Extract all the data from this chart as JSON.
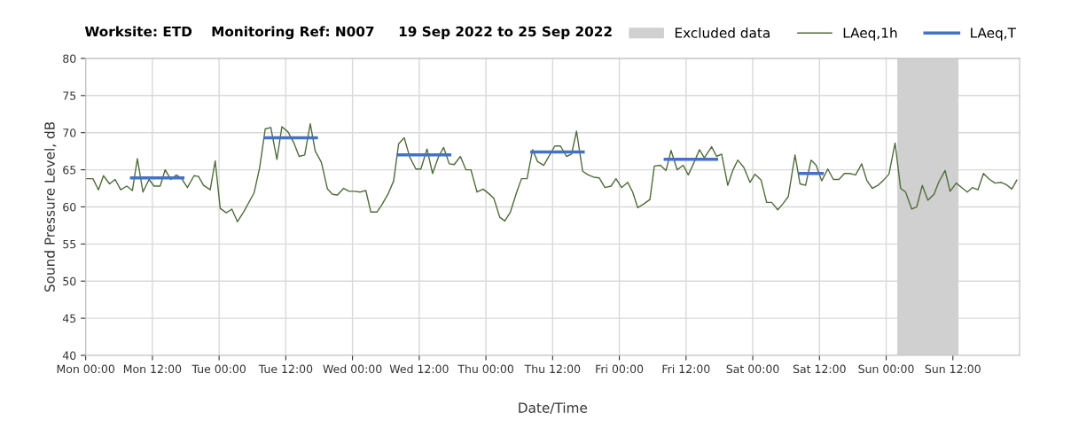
{
  "chart_data": {
    "type": "line",
    "title": "Worksite: ETD    Monitoring Ref: N007     19 Sep 2022 to 25 Sep 2022",
    "xlabel": "Date/Time",
    "ylabel": "Sound Pressure Level, dB",
    "xlim": [
      "2022-09-19T00:00",
      "2022-09-26T00:00"
    ],
    "ylim": [
      40,
      80
    ],
    "xticks": [
      {
        "value": "2022-09-19T00:00",
        "label": "Mon 00:00"
      },
      {
        "value": "2022-09-19T12:00",
        "label": "Mon 12:00"
      },
      {
        "value": "2022-09-20T00:00",
        "label": "Tue 00:00"
      },
      {
        "value": "2022-09-20T12:00",
        "label": "Tue 12:00"
      },
      {
        "value": "2022-09-21T00:00",
        "label": "Wed 00:00"
      },
      {
        "value": "2022-09-21T12:00",
        "label": "Wed 12:00"
      },
      {
        "value": "2022-09-22T00:00",
        "label": "Thu 00:00"
      },
      {
        "value": "2022-09-22T12:00",
        "label": "Thu 12:00"
      },
      {
        "value": "2022-09-23T00:00",
        "label": "Fri 00:00"
      },
      {
        "value": "2022-09-23T12:00",
        "label": "Fri 12:00"
      },
      {
        "value": "2022-09-24T00:00",
        "label": "Sat 00:00"
      },
      {
        "value": "2022-09-24T12:00",
        "label": "Sat 12:00"
      },
      {
        "value": "2022-09-25T00:00",
        "label": "Sun 00:00"
      },
      {
        "value": "2022-09-25T12:00",
        "label": "Sun 12:00"
      }
    ],
    "yticks": [
      40,
      45,
      50,
      55,
      60,
      65,
      70,
      75,
      80
    ],
    "grid": true,
    "legend": "top right",
    "bands": [
      {
        "axis": "x",
        "from": "2022-09-25T02:00",
        "to": "2022-09-25T13:00",
        "label": "Excluded data",
        "color": "#d0d0d0"
      }
    ],
    "series": [
      {
        "name": "LAeq,1h",
        "color": "#4f6b3a",
        "line_style": "solid",
        "x": [
          "2022-09-19T00:12",
          "2022-09-19T01:18",
          "2022-09-19T02:18",
          "2022-09-19T03:12",
          "2022-09-19T04:18",
          "2022-09-19T05:18",
          "2022-09-19T06:18",
          "2022-09-19T07:24",
          "2022-09-19T08:24",
          "2022-09-19T09:18",
          "2022-09-19T10:18",
          "2022-09-19T11:24",
          "2022-09-19T12:18",
          "2022-09-19T13:24",
          "2022-09-19T14:18",
          "2022-09-19T15:18",
          "2022-09-19T16:18",
          "2022-09-19T17:12",
          "2022-09-19T18:18",
          "2022-09-19T19:30",
          "2022-09-19T20:18",
          "2022-09-19T21:12",
          "2022-09-19T22:24",
          "2022-09-19T23:18",
          "2022-09-20T00:12",
          "2022-09-20T01:18",
          "2022-09-20T02:18",
          "2022-09-20T03:18",
          "2022-09-20T04:24",
          "2022-09-20T05:30",
          "2022-09-20T06:18",
          "2022-09-20T07:18",
          "2022-09-20T08:18",
          "2022-09-20T09:18",
          "2022-09-20T10:24",
          "2022-09-20T11:18",
          "2022-09-20T12:24",
          "2022-09-20T13:24",
          "2022-09-20T14:24",
          "2022-09-20T15:24",
          "2022-09-20T16:24",
          "2022-09-20T17:18",
          "2022-09-20T18:24",
          "2022-09-20T19:30",
          "2022-09-20T20:24",
          "2022-09-20T21:18",
          "2022-09-20T22:24",
          "2022-09-20T23:24",
          "2022-09-21T00:24",
          "2022-09-21T01:24",
          "2022-09-21T02:24",
          "2022-09-21T03:18",
          "2022-09-21T04:24",
          "2022-09-21T05:18",
          "2022-09-21T06:30",
          "2022-09-21T07:24",
          "2022-09-21T08:18",
          "2022-09-21T09:18",
          "2022-09-21T10:18",
          "2022-09-21T11:24",
          "2022-09-21T12:18",
          "2022-09-21T13:24",
          "2022-09-21T14:24",
          "2022-09-21T15:30",
          "2022-09-21T16:24",
          "2022-09-21T17:24",
          "2022-09-21T18:18",
          "2022-09-21T19:24",
          "2022-09-21T20:24",
          "2022-09-21T21:18",
          "2022-09-21T22:24",
          "2022-09-21T23:30",
          "2022-09-22T00:30",
          "2022-09-22T01:24",
          "2022-09-22T02:30",
          "2022-09-22T03:24",
          "2022-09-22T04:24",
          "2022-09-22T05:30",
          "2022-09-22T06:24",
          "2022-09-22T07:24",
          "2022-09-22T08:24",
          "2022-09-22T09:18",
          "2022-09-22T10:24",
          "2022-09-22T11:24",
          "2022-09-22T12:24",
          "2022-09-22T13:24",
          "2022-09-22T14:30",
          "2022-09-22T15:24",
          "2022-09-22T16:18",
          "2022-09-22T17:24",
          "2022-09-22T18:24",
          "2022-09-22T19:24",
          "2022-09-22T20:24",
          "2022-09-22T21:24",
          "2022-09-22T22:30",
          "2022-09-22T23:24",
          "2022-09-23T00:24",
          "2022-09-23T01:30",
          "2022-09-23T02:24",
          "2022-09-23T03:18",
          "2022-09-23T04:24",
          "2022-09-23T05:30",
          "2022-09-23T06:18",
          "2022-09-23T07:24",
          "2022-09-23T08:24",
          "2022-09-23T09:18",
          "2022-09-23T10:24",
          "2022-09-23T11:30",
          "2022-09-23T12:24",
          "2022-09-23T13:30",
          "2022-09-23T14:24",
          "2022-09-23T15:18",
          "2022-09-23T16:36",
          "2022-09-23T17:30",
          "2022-09-23T18:24",
          "2022-09-23T19:30",
          "2022-09-23T20:24",
          "2022-09-23T21:18",
          "2022-09-23T22:24",
          "2022-09-23T23:30",
          "2022-09-24T00:24",
          "2022-09-24T01:30",
          "2022-09-24T02:30",
          "2022-09-24T03:24",
          "2022-09-24T04:30",
          "2022-09-24T05:24",
          "2022-09-24T06:24",
          "2022-09-24T07:36",
          "2022-09-24T08:30",
          "2022-09-24T09:30",
          "2022-09-24T10:30",
          "2022-09-24T11:24",
          "2022-09-24T12:24",
          "2022-09-24T13:30",
          "2022-09-24T14:30",
          "2022-09-24T15:30",
          "2022-09-24T16:30",
          "2022-09-24T17:24",
          "2022-09-24T18:30",
          "2022-09-24T19:36",
          "2022-09-24T20:30",
          "2022-09-24T21:30",
          "2022-09-24T22:30",
          "2022-09-24T23:24",
          "2022-09-25T00:30",
          "2022-09-25T01:36",
          "2022-09-25T02:36",
          "2022-09-25T03:30",
          "2022-09-25T04:36",
          "2022-09-25T05:30",
          "2022-09-25T06:30",
          "2022-09-25T07:30",
          "2022-09-25T08:36",
          "2022-09-25T09:30",
          "2022-09-25T10:36",
          "2022-09-25T11:30",
          "2022-09-25T12:36",
          "2022-09-25T13:36",
          "2022-09-25T14:36",
          "2022-09-25T15:30",
          "2022-09-25T16:30",
          "2022-09-25T17:30",
          "2022-09-25T18:36",
          "2022-09-25T19:36",
          "2022-09-25T20:42",
          "2022-09-25T21:36",
          "2022-09-25T22:36",
          "2022-09-25T23:30"
        ],
        "values": [
          63.8,
          63.8,
          62.3,
          64.2,
          63.1,
          63.7,
          62.3,
          62.8,
          62.2,
          66.5,
          62.0,
          63.7,
          62.8,
          62.8,
          65.0,
          63.7,
          64.3,
          63.9,
          62.6,
          64.2,
          64.1,
          62.9,
          62.3,
          66.2,
          59.8,
          59.2,
          59.7,
          58.0,
          59.3,
          60.8,
          61.9,
          65.3,
          70.5,
          70.7,
          66.4,
          70.8,
          70.1,
          68.7,
          66.8,
          67.0,
          71.2,
          67.5,
          66.0,
          62.4,
          61.7,
          61.6,
          62.5,
          62.1,
          62.1,
          62.0,
          62.2,
          59.3,
          59.3,
          60.3,
          61.9,
          63.5,
          68.5,
          69.3,
          66.7,
          65.1,
          65.1,
          67.8,
          64.5,
          66.8,
          68.0,
          65.8,
          65.7,
          66.8,
          65.0,
          65.0,
          62.0,
          62.4,
          61.8,
          61.2,
          58.6,
          58.1,
          59.3,
          61.9,
          63.8,
          63.8,
          67.7,
          66.1,
          65.6,
          66.9,
          68.2,
          68.2,
          66.8,
          67.1,
          70.2,
          64.8,
          64.3,
          64.0,
          63.9,
          62.6,
          62.8,
          63.8,
          62.6,
          63.3,
          62.0,
          59.9,
          60.4,
          61.0,
          65.5,
          65.6,
          64.9,
          67.6,
          65.0,
          65.6,
          64.3,
          66.1,
          67.7,
          66.6,
          68.1,
          66.8,
          67.1,
          62.9,
          64.9,
          66.3,
          65.3,
          63.3,
          64.4,
          63.6,
          60.6,
          60.6,
          59.6,
          60.4,
          61.4,
          67.0,
          63.1,
          62.9,
          66.3,
          65.6,
          63.5,
          65.1,
          63.7,
          63.7,
          64.5,
          64.5,
          64.3,
          65.8,
          63.6,
          62.5,
          62.9,
          63.5,
          64.4,
          68.6,
          62.5,
          62.0,
          59.7,
          60.0,
          62.9,
          60.9,
          61.7,
          63.4,
          64.9,
          62.1,
          63.2,
          62.6,
          62.0,
          62.6,
          62.3,
          64.5,
          63.7,
          63.2,
          63.3,
          63.0,
          62.4,
          63.6
        ]
      },
      {
        "name": "LAeq,T",
        "color": "#4472c4",
        "line_style": "solid",
        "x": [
          "2022-09-19T08:15",
          "2022-09-19T17:30",
          "2022-09-20T00:00",
          "2022-09-20T08:15",
          "2022-09-20T17:30",
          "2022-09-21T00:00",
          "2022-09-21T08:15",
          "2022-09-21T17:30",
          "2022-09-22T00:00",
          "2022-09-22T08:15",
          "2022-09-22T17:30",
          "2022-09-23T00:00",
          "2022-09-23T08:15",
          "2022-09-23T17:30",
          "2022-09-24T00:00",
          "2022-09-24T08:30",
          "2022-09-24T12:30"
        ],
        "values": [
          63.9,
          63.9,
          null,
          69.3,
          69.3,
          null,
          67.0,
          67.0,
          null,
          67.4,
          67.4,
          null,
          66.4,
          66.4,
          null,
          64.5,
          64.5
        ]
      }
    ]
  }
}
